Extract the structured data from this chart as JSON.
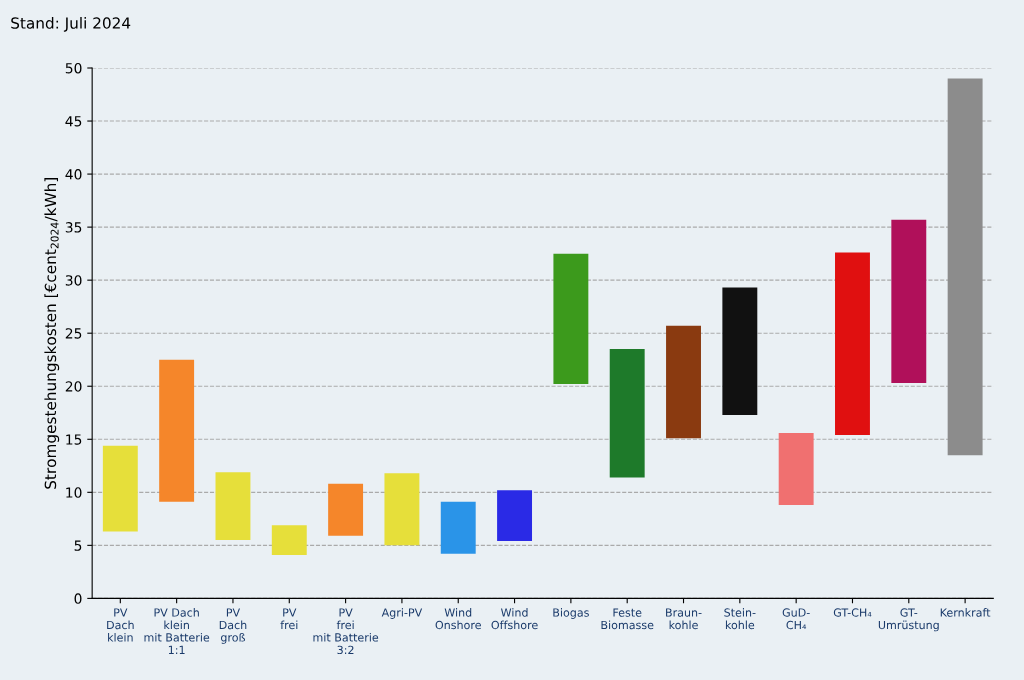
{
  "chart_data": {
    "type": "bar",
    "ylabel": "Stromgestehungskosten [€cent$_{2024}$/kWh]",
    "annotations": [
      "Stand: Juli 2024"
    ],
    "categories": [
      "PV\nDach\nklein",
      "PV Dach\nklein\nmit Batterie\n1:1",
      "PV\nDach\ngroß",
      "PV\nfrei",
      "PV\nfrei\nmit Batterie\n3:2",
      "Agri-PV",
      "Wind\nOnshore",
      "Wind\nOffshore",
      "Biogas",
      "Feste\nBiomasse",
      "Braun-\nkohle",
      "Stein-\nkohle",
      "GuD-\nCH₄",
      "GT-CH₄",
      "GT-\nUmrüstung",
      "Kernkraft"
    ],
    "base": [
      6.3,
      9.1,
      5.5,
      4.1,
      5.9,
      5.0,
      4.2,
      5.4,
      20.2,
      11.4,
      15.1,
      17.3,
      8.8,
      15.4,
      20.3,
      13.5
    ],
    "values": [
      8.1,
      13.4,
      6.4,
      2.8,
      4.9,
      6.8,
      4.9,
      4.8,
      12.3,
      12.1,
      10.6,
      12.0,
      6.8,
      17.2,
      15.4,
      35.5
    ],
    "colors": [
      "#e6df3a",
      "#f5862a",
      "#e6df3a",
      "#e6df3a",
      "#f5862a",
      "#e6df3a",
      "#2a94e8",
      "#2a2ae6",
      "#3c9a1c",
      "#1e7a2a",
      "#8a3a10",
      "#111111",
      "#f07070",
      "#e01010",
      "#b0105a",
      "#8c8c8c"
    ],
    "ylim": [
      0,
      50
    ],
    "yticks": [
      0,
      5,
      10,
      15,
      20,
      25,
      30,
      35,
      40,
      45,
      50
    ],
    "grid": "y"
  }
}
